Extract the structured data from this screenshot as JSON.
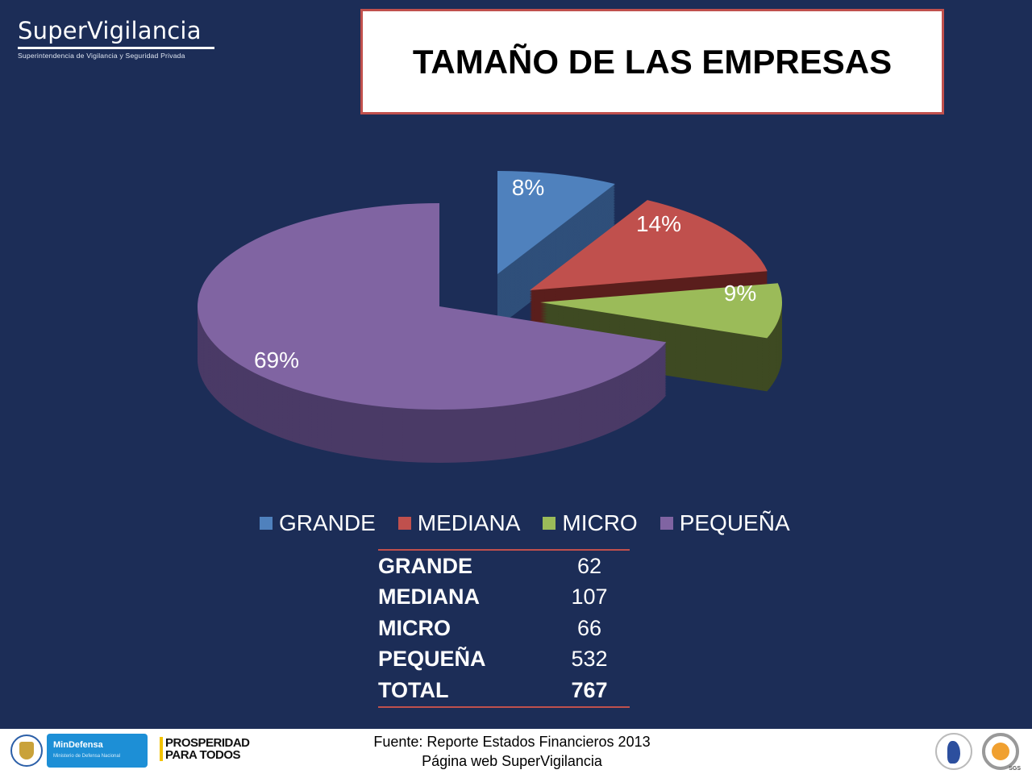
{
  "brand": {
    "name": "SuperVigilancia",
    "subtitle": "Superintendencia de Vigilancia y Seguridad Privada"
  },
  "title": "TAMAÑO DE LAS EMPRESAS",
  "chart_data": {
    "type": "pie",
    "style": "3d-exploded",
    "categories": [
      "GRANDE",
      "MEDIANA",
      "MICRO",
      "PEQUEÑA"
    ],
    "values": [
      62,
      107,
      66,
      532
    ],
    "data_labels": [
      "8%",
      "14%",
      "9%",
      "69%"
    ],
    "colors": [
      "#4f81bd",
      "#c0504d",
      "#9bbb59",
      "#8064a2"
    ],
    "side_colors": [
      "#2f4f7a",
      "#5a1e1c",
      "#3e4a22",
      "#4a3a66"
    ],
    "legend_position": "bottom"
  },
  "table": {
    "rows": [
      {
        "label": "GRANDE",
        "value": "62"
      },
      {
        "label": "MEDIANA",
        "value": "107"
      },
      {
        "label": "MICRO",
        "value": "66"
      },
      {
        "label": "PEQUEÑA",
        "value": "532"
      }
    ],
    "total": {
      "label": "TOTAL",
      "value": "767"
    }
  },
  "footer": {
    "source_line1": "Fuente: Reporte Estados Financieros 2013",
    "source_line2": "Página web SuperVigilancia",
    "mindefensa": "MinDefensa",
    "mindefensa_sub": "Ministerio de Defensa Nacional",
    "prosperidad": "PROSPERIDAD PARA TODOS",
    "sgs": "SGS"
  }
}
